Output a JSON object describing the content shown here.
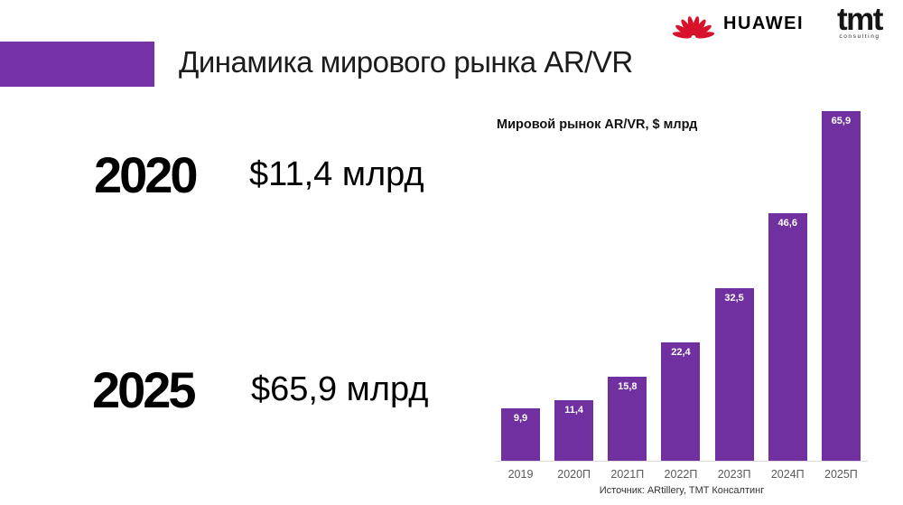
{
  "slide": {
    "title": "Динамика мирового рынка AR/VR",
    "accent_color": "#7533A7",
    "source": "Источник: ARtillery, TMT Консалтинг"
  },
  "logos": {
    "huawei": {
      "wordmark": "HUAWEI",
      "red": "#D8122A"
    },
    "tmt": {
      "wordmark": "tmt",
      "tagline": "consulting"
    }
  },
  "highlights": [
    {
      "year": "2020",
      "value": "$11,4 млрд"
    },
    {
      "year": "2025",
      "value": "$65,9 млрд"
    }
  ],
  "chart_data": {
    "type": "bar",
    "title": "Мировой рынок AR/VR, $ млрд",
    "categories": [
      "2019",
      "2020П",
      "2021П",
      "2022П",
      "2023П",
      "2024П",
      "2025П"
    ],
    "values": [
      9.9,
      11.4,
      15.8,
      22.4,
      32.5,
      46.6,
      65.9
    ],
    "value_labels": [
      "9,9",
      "11,4",
      "15,8",
      "22,4",
      "32,5",
      "46,6",
      "65,9"
    ],
    "bar_color": "#7130A0",
    "value_label_color": "#FFFFFF",
    "category_label_color": "#595959",
    "xlabel": "",
    "ylabel": "",
    "ylim": [
      0,
      65.9
    ],
    "grid": false,
    "legend": false
  }
}
